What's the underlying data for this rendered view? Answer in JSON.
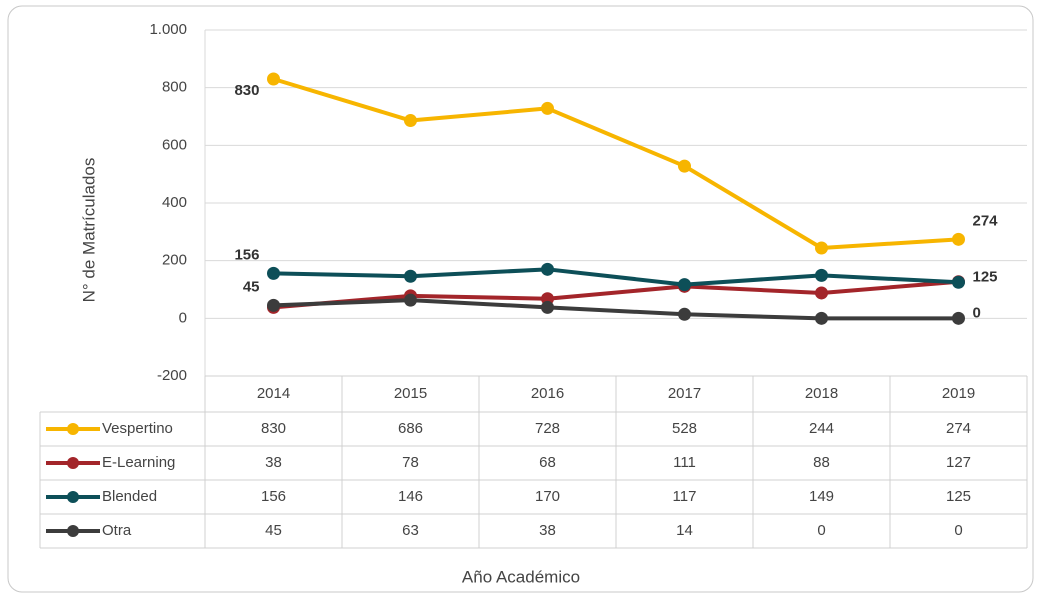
{
  "chart_data": {
    "type": "line",
    "y_axis_label": "N° de Matrículados",
    "x_axis_label": "Año Académico",
    "categories": [
      "2014",
      "2015",
      "2016",
      "2017",
      "2018",
      "2019"
    ],
    "series": [
      {
        "name": "Vespertino",
        "color": "#f7b500",
        "values": [
          830,
          686,
          728,
          528,
          244,
          274
        ],
        "data_labels": true
      },
      {
        "name": "E-Learning",
        "color": "#a3252a",
        "values": [
          38,
          78,
          68,
          111,
          88,
          127
        ],
        "data_labels": false
      },
      {
        "name": "Blended",
        "color": "#0d4f58",
        "values": [
          156,
          146,
          170,
          117,
          149,
          125
        ],
        "data_labels": true
      },
      {
        "name": "Otra",
        "color": "#3c3c3c",
        "values": [
          45,
          63,
          38,
          14,
          0,
          0
        ],
        "data_labels": true
      }
    ],
    "data_label_points": "ends",
    "ylim": [
      -200,
      1000
    ],
    "yticks": [
      -200,
      0,
      200,
      400,
      600,
      800,
      {
        "value": 1000,
        "label": "1.000"
      }
    ],
    "grid": true,
    "data_table": true
  }
}
